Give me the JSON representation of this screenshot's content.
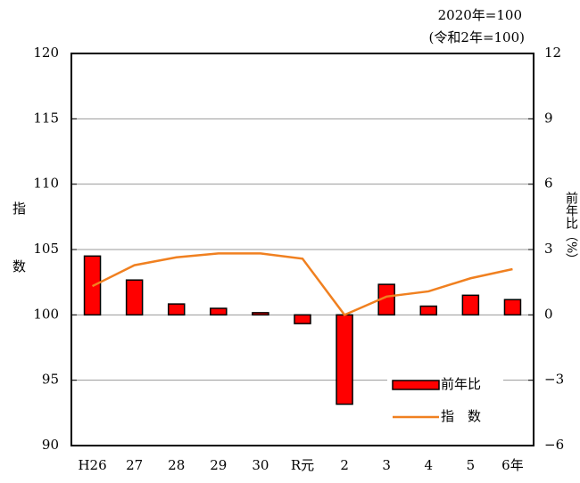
{
  "chart_data": {
    "type": "bar_line",
    "note_top": "2020年=100",
    "note_sub": "(令和2年=100)",
    "y_label": "指数",
    "y2_label": "前年比（%）",
    "categories": [
      "H26",
      "27",
      "28",
      "29",
      "30",
      "R元",
      "2",
      "3",
      "4",
      "5",
      "6年"
    ],
    "series": [
      {
        "name": "前年比",
        "type": "bar",
        "axis": "y2",
        "color": "#ff0000",
        "values": [
          2.7,
          1.6,
          0.5,
          0.3,
          0.1,
          -0.4,
          -4.1,
          1.4,
          0.4,
          0.9,
          0.7
        ]
      },
      {
        "name": "指　数",
        "type": "line",
        "color": "#f08020",
        "values": [
          102.2,
          103.8,
          104.4,
          104.7,
          104.7,
          104.3,
          100.0,
          101.4,
          101.8,
          102.8,
          103.5
        ]
      }
    ],
    "ylim": [
      90,
      120
    ],
    "yticks": [
      90,
      95,
      100,
      105,
      110,
      115,
      120
    ],
    "y2lim": [
      -6,
      12
    ],
    "y2ticks": [
      {
        "value": -6,
        "label": "−6"
      },
      {
        "value": -3,
        "label": "−3"
      },
      0,
      3,
      6,
      9,
      12
    ],
    "grid": true
  }
}
